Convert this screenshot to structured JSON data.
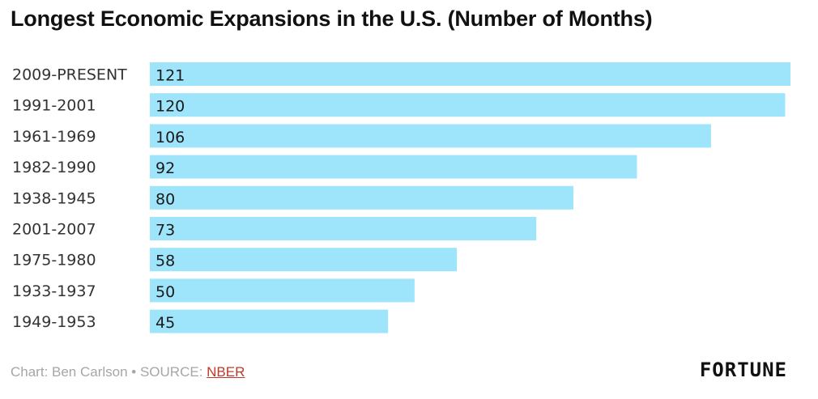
{
  "chart_data": {
    "type": "bar",
    "orientation": "horizontal",
    "title": "Longest Economic Expansions in the U.S. (Number of Months)",
    "categories": [
      "2009-PRESENT",
      "1991-2001",
      "1961-1969",
      "1982-1990",
      "1938-1945",
      "2001-2007",
      "1975-1980",
      "1933-1937",
      "1949-1953"
    ],
    "values": [
      121,
      120,
      106,
      92,
      80,
      73,
      58,
      50,
      45
    ],
    "xlim": [
      0,
      121
    ],
    "grid": false,
    "legend": "none",
    "bar_color": "#9ee5fb"
  },
  "footer": {
    "credit": "Chart: Ben Carlson • SOURCE: ",
    "source_link": "NBER"
  },
  "logo": {
    "text": "FORTUNE"
  }
}
